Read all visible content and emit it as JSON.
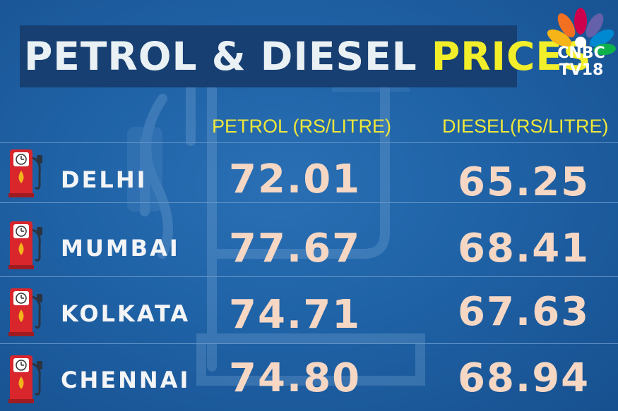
{
  "title": {
    "part1": "PETROL & DIESEL",
    "part2": "PRICES"
  },
  "logo": {
    "line1": "CNBC",
    "line2": "TV18"
  },
  "columns": {
    "petrol": "PETROL (RS/LITRE)",
    "diesel": "DIESEL(RS/LITRE)"
  },
  "rows": [
    {
      "city": "DELHI",
      "petrol": "72.01",
      "diesel": "65.25"
    },
    {
      "city": "MUMBAI",
      "petrol": "77.67",
      "diesel": "68.41"
    },
    {
      "city": "KOLKATA",
      "petrol": "74.71",
      "diesel": "67.63"
    },
    {
      "city": "CHENNAI",
      "petrol": "74.80",
      "diesel": "68.94"
    }
  ],
  "colors": {
    "background": "#1f62a6",
    "title_bar": "#173f72",
    "accent_yellow": "#f2ee2a",
    "price": "#f5d7c4",
    "pump_red": "#d8262c"
  },
  "icons": {
    "row_icon": "fuel-pump-icon",
    "logo": "peacock-logo-icon"
  }
}
